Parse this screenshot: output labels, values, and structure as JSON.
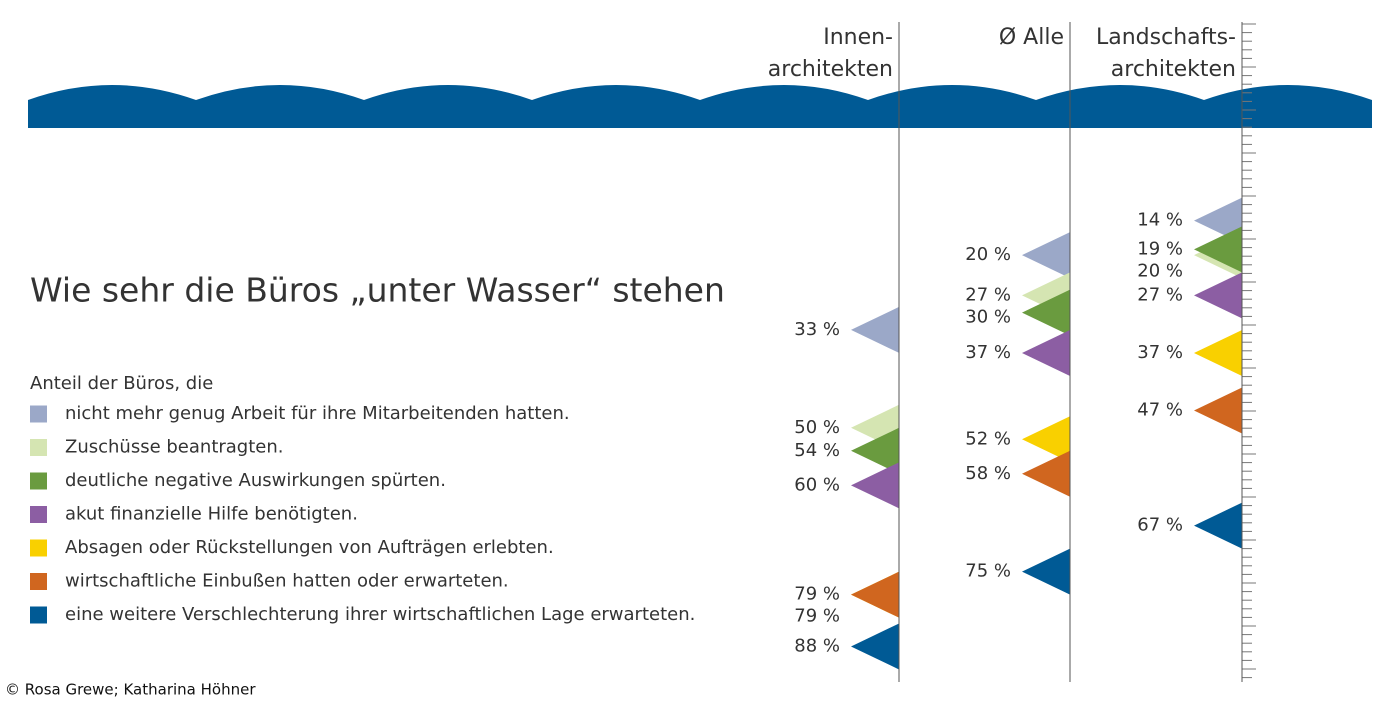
{
  "chart_data": {
    "type": "flag",
    "title": "Wie sehr die Büros „unter Wasser“ stehen",
    "subtitle": "Anteil der Büros, die",
    "credit": "© Rosa Grewe; Katharina Höhner",
    "categories": [
      "Innen-\narchitekten",
      "Ø Alle",
      "Landschafts-\narchitekten"
    ],
    "ylim": [
      0,
      94
    ],
    "series": [
      {
        "name": "nicht mehr genug Arbeit für ihre Mitarbeitenden hatten.",
        "color": "#9ba8c8",
        "values": [
          33,
          20,
          14
        ],
        "value_labels": [
          "33 %",
          "20 %",
          "14 %"
        ]
      },
      {
        "name": "Zuschüsse beantragten.",
        "color": "#d5e5b2",
        "values": [
          50,
          27,
          20
        ],
        "value_labels": [
          "50 %",
          "27 %",
          "20 %"
        ]
      },
      {
        "name": "deutliche negative Auswirkungen spürten.",
        "color": "#6a9b3f",
        "values": [
          54,
          30,
          19
        ],
        "value_labels": [
          "54 %",
          "30 %",
          "19 %"
        ]
      },
      {
        "name": "akut finanzielle Hilfe benötigten.",
        "color": "#8c5ea3",
        "values": [
          60,
          37,
          27
        ],
        "value_labels": [
          "60 %",
          "37 %",
          "27 %"
        ]
      },
      {
        "name": "Absagen oder Rückstellungen von Aufträgen erlebten.",
        "color": "#f9d000",
        "values": [
          79,
          52,
          37
        ],
        "value_labels": [
          "79 %",
          "52 %",
          "37 %"
        ]
      },
      {
        "name": "wirtschaftliche Einbußen hatten oder erwarteten.",
        "color": "#d0661f",
        "values": [
          79,
          58,
          47
        ],
        "value_labels": [
          "79 %",
          "58 %",
          "47 %"
        ]
      },
      {
        "name": "eine weitere Verschlechterung ihrer wirtschaftlichen Lage erwarteten.",
        "color": "#005a95",
        "values": [
          88,
          75,
          67
        ],
        "value_labels": [
          "88 %",
          "75 %",
          "67 %"
        ]
      }
    ]
  }
}
